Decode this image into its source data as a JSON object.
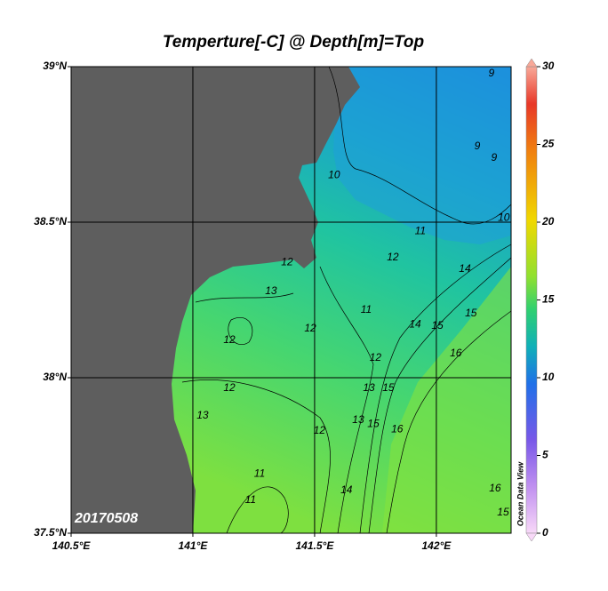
{
  "title": "Temperture[-C] @ Depth[m]=Top",
  "date_label": "20170508",
  "watermark": "Ocean Data View",
  "map": {
    "xlim": [
      140.5,
      142.307
    ],
    "ylim": [
      37.5,
      39
    ],
    "xticks": [
      {
        "value": 140.5,
        "label": "140.5°E"
      },
      {
        "value": 141,
        "label": "141°E"
      },
      {
        "value": 141.5,
        "label": "141.5°E"
      },
      {
        "value": 142,
        "label": "142°E"
      }
    ],
    "yticks": [
      {
        "value": 37.5,
        "label": "37.5°N"
      },
      {
        "value": 38,
        "label": "38°N"
      },
      {
        "value": 38.5,
        "label": "38.5°N"
      },
      {
        "value": 39,
        "label": "39°N"
      }
    ],
    "grid": true,
    "contour_labels": [
      {
        "value": 9,
        "lon": 142.226,
        "lat": 38.977
      },
      {
        "value": 9,
        "lon": 142.168,
        "lat": 38.743
      },
      {
        "value": 9,
        "lon": 142.237,
        "lat": 38.706
      },
      {
        "value": 10,
        "lon": 141.58,
        "lat": 38.65
      },
      {
        "value": 10,
        "lon": 142.277,
        "lat": 38.514
      },
      {
        "value": 11,
        "lon": 141.934,
        "lat": 38.471
      },
      {
        "value": 11,
        "lon": 141.712,
        "lat": 38.217
      },
      {
        "value": 12,
        "lon": 141.387,
        "lat": 38.371
      },
      {
        "value": 13,
        "lon": 141.321,
        "lat": 38.277
      },
      {
        "value": 12,
        "lon": 141.15,
        "lat": 38.12
      },
      {
        "value": 12,
        "lon": 141.482,
        "lat": 38.157
      },
      {
        "value": 12,
        "lon": 141.15,
        "lat": 37.966
      },
      {
        "value": 13,
        "lon": 141.04,
        "lat": 37.877
      },
      {
        "value": 11,
        "lon": 141.274,
        "lat": 37.691
      },
      {
        "value": 11,
        "lon": 141.237,
        "lat": 37.606
      },
      {
        "value": 12,
        "lon": 141.52,
        "lat": 37.829
      },
      {
        "value": 12,
        "lon": 141.75,
        "lat": 38.063
      },
      {
        "value": 13,
        "lon": 141.723,
        "lat": 37.966
      },
      {
        "value": 13,
        "lon": 141.679,
        "lat": 37.863
      },
      {
        "value": 14,
        "lon": 142.117,
        "lat": 38.349
      },
      {
        "value": 15,
        "lon": 142.142,
        "lat": 38.206
      },
      {
        "value": 14,
        "lon": 141.913,
        "lat": 38.171
      },
      {
        "value": 15,
        "lon": 142.004,
        "lat": 38.166
      },
      {
        "value": 16,
        "lon": 142.08,
        "lat": 38.077
      },
      {
        "value": 15,
        "lon": 141.803,
        "lat": 37.966
      },
      {
        "value": 15,
        "lon": 141.741,
        "lat": 37.851
      },
      {
        "value": 16,
        "lon": 141.839,
        "lat": 37.834
      },
      {
        "value": 14,
        "lon": 141.631,
        "lat": 37.637
      },
      {
        "value": 16,
        "lon": 142.241,
        "lat": 37.643
      },
      {
        "value": 15,
        "lon": 142.274,
        "lat": 37.566
      },
      {
        "value": 12,
        "lon": 141.821,
        "lat": 38.386
      }
    ]
  },
  "colorbar": {
    "lim": [
      0,
      30
    ],
    "ticks": [
      0,
      5,
      10,
      15,
      20,
      25,
      30
    ]
  }
}
